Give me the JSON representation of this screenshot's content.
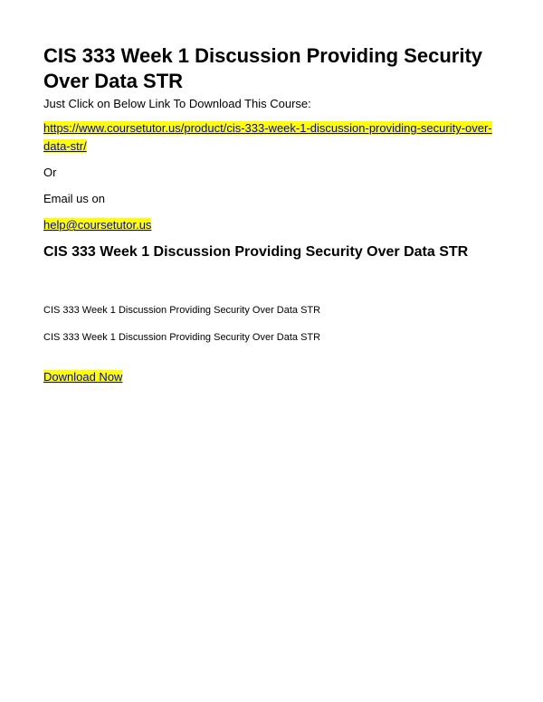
{
  "document": {
    "main_title": "CIS 333 Week 1 Discussion Providing Security Over Data STR",
    "subtitle": "Just Click on Below Link To Download This Course:",
    "product_link": "https://www.coursetutor.us/product/cis-333-week-1-discussion-providing-security-over-data-str/",
    "or_label": "Or",
    "email_label": "Email us on",
    "email_link": "help@coursetutor.us",
    "section_title": "CIS 333 Week 1 Discussion Providing Security Over Data STR",
    "body_line_1": "CIS 333 Week 1 Discussion Providing Security Over Data STR",
    "body_line_2": "CIS 333 Week 1 Discussion Providing Security Over Data STR",
    "download_label": "Download Now"
  },
  "style": {
    "highlight_bg": "#ffff00",
    "link_color": "#0000ee",
    "text_color": "#000000",
    "background_color": "#ffffff"
  }
}
